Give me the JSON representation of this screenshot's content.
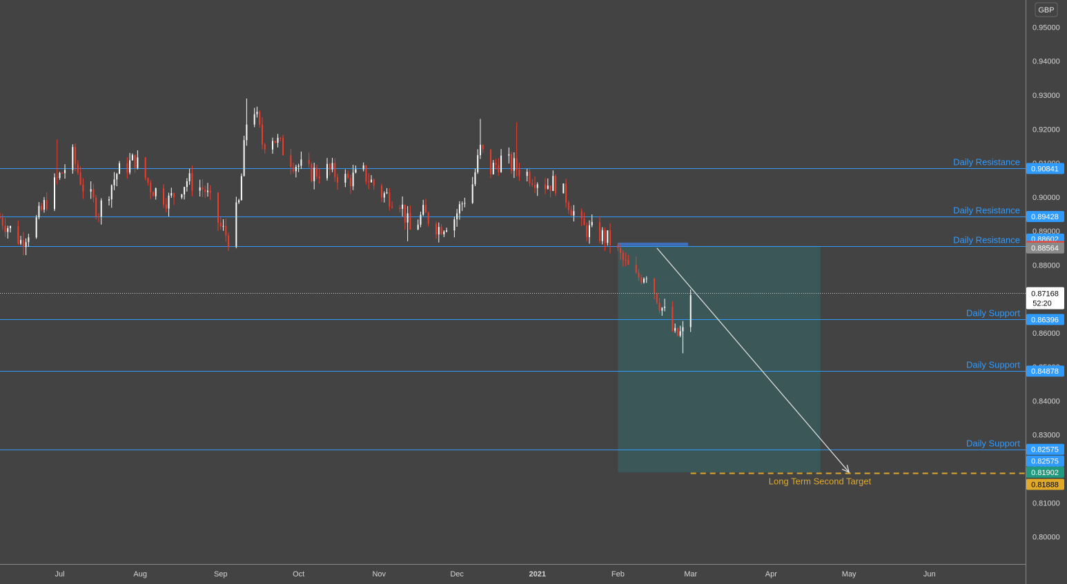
{
  "currency_label": "GBP",
  "colors": {
    "background": "#434343",
    "candle_up": "#ffffff",
    "candle_down": "#f23b2a",
    "level": "#2f9bff",
    "box": "#3b5958",
    "target": "#e0a92a",
    "arrow": "#e6e6e6"
  },
  "chart_data": {
    "type": "candlestick",
    "instrument_currency": "GBP",
    "y_range": [
      0.792,
      0.958
    ],
    "x_range": [
      "2020-06-08",
      "2021-07-08"
    ],
    "y_ticks": [
      "0.95000",
      "0.94000",
      "0.93000",
      "0.92000",
      "0.91000",
      "0.90000",
      "0.89000",
      "0.88000",
      "0.87000",
      "0.86000",
      "0.85000",
      "0.84000",
      "0.83000",
      "0.82000",
      "0.81000",
      "0.80000"
    ],
    "x_ticks": [
      {
        "label": "Jul",
        "date": "2020-07-01"
      },
      {
        "label": "Aug",
        "date": "2020-08-01"
      },
      {
        "label": "Sep",
        "date": "2020-09-01"
      },
      {
        "label": "Oct",
        "date": "2020-10-01"
      },
      {
        "label": "Nov",
        "date": "2020-11-01"
      },
      {
        "label": "Dec",
        "date": "2020-12-01"
      },
      {
        "label": "2021",
        "date": "2021-01-01"
      },
      {
        "label": "Feb",
        "date": "2021-02-01"
      },
      {
        "label": "Mar",
        "date": "2021-03-01"
      },
      {
        "label": "Apr",
        "date": "2021-04-01"
      },
      {
        "label": "May",
        "date": "2021-05-01"
      },
      {
        "label": "Jun",
        "date": "2021-06-01"
      }
    ],
    "price_path": [
      [
        "2020-06-08",
        0.894
      ],
      [
        "2020-06-16",
        0.887
      ],
      [
        "2020-06-22",
        0.893
      ],
      [
        "2020-06-30",
        0.905
      ],
      [
        "2020-07-06",
        0.912
      ],
      [
        "2020-07-10",
        0.903
      ],
      [
        "2020-07-16",
        0.896
      ],
      [
        "2020-07-23",
        0.907
      ],
      [
        "2020-07-30",
        0.911
      ],
      [
        "2020-08-05",
        0.903
      ],
      [
        "2020-08-12",
        0.899
      ],
      [
        "2020-08-19",
        0.905
      ],
      [
        "2020-08-26",
        0.902
      ],
      [
        "2020-09-01",
        0.891
      ],
      [
        "2020-09-04",
        0.888
      ],
      [
        "2020-09-08",
        0.898
      ],
      [
        "2020-09-11",
        0.922
      ],
      [
        "2020-09-14",
        0.926
      ],
      [
        "2020-09-17",
        0.916
      ],
      [
        "2020-09-21",
        0.918
      ],
      [
        "2020-09-28",
        0.911
      ],
      [
        "2020-10-05",
        0.907
      ],
      [
        "2020-10-12",
        0.908
      ],
      [
        "2020-10-20",
        0.905
      ],
      [
        "2020-10-26",
        0.907
      ],
      [
        "2020-11-02",
        0.901
      ],
      [
        "2020-11-09",
        0.899
      ],
      [
        "2020-11-13",
        0.89
      ],
      [
        "2020-11-18",
        0.895
      ],
      [
        "2020-11-24",
        0.891
      ],
      [
        "2020-11-30",
        0.894
      ],
      [
        "2020-12-07",
        0.904
      ],
      [
        "2020-12-10",
        0.914
      ],
      [
        "2020-12-14",
        0.908
      ],
      [
        "2020-12-18",
        0.911
      ],
      [
        "2020-12-23",
        0.909
      ],
      [
        "2021-01-04",
        0.904
      ],
      [
        "2021-01-08",
        0.904
      ],
      [
        "2021-01-12",
        0.9
      ],
      [
        "2021-01-18",
        0.891
      ],
      [
        "2021-01-25",
        0.889
      ],
      [
        "2021-01-29",
        0.887
      ],
      [
        "2021-02-04",
        0.88
      ],
      [
        "2021-02-08",
        0.876
      ],
      [
        "2021-02-12",
        0.878
      ],
      [
        "2021-02-17",
        0.869
      ],
      [
        "2021-02-23",
        0.859
      ],
      [
        "2021-02-26",
        0.86
      ],
      [
        "2021-03-01",
        0.872
      ]
    ],
    "spikes": [
      {
        "date": "2020-06-30",
        "high": 0.917
      },
      {
        "date": "2020-09-11",
        "high": 0.929
      },
      {
        "date": "2020-12-10",
        "high": 0.923
      },
      {
        "date": "2020-12-24",
        "high": 0.922
      },
      {
        "date": "2020-09-04",
        "low": 0.887
      },
      {
        "date": "2020-11-12",
        "low": 0.887
      },
      {
        "date": "2021-02-26",
        "low": 0.854
      }
    ],
    "levels": [
      {
        "label": "Daily Resistance",
        "value": 0.90841,
        "tag": "0.90841"
      },
      {
        "label": "Daily Resistance",
        "value": 0.89428,
        "tag": "0.89428"
      },
      {
        "label": "Daily Resistance",
        "value": 0.88564,
        "tag": "0.88564"
      },
      {
        "label": "Daily Support",
        "value": 0.86396,
        "tag": "0.86396"
      },
      {
        "label": "Daily Support",
        "value": 0.84878,
        "tag": "0.84878"
      },
      {
        "label": "Daily Support",
        "value": 0.82575,
        "tag": "0.82575"
      }
    ],
    "price_tags": [
      {
        "value": 0.90841,
        "text": "0.90841",
        "bg": "#2f9bff",
        "fg": "#ffffff"
      },
      {
        "value": 0.89428,
        "text": "0.89428",
        "bg": "#2f9bff",
        "fg": "#ffffff"
      },
      {
        "value": 0.88602,
        "text": "0.88602",
        "bg": "#2f9bff",
        "fg": "#ffffff"
      },
      {
        "value": 0.88565,
        "text": "0.88565",
        "bg": "#f23b2a",
        "fg": "#ffffff"
      },
      {
        "value": 0.88564,
        "text": "0.88564",
        "bg": "#8a8a8a",
        "fg": "#ffffff"
      },
      {
        "value": 0.86396,
        "text": "0.86396",
        "bg": "#2f9bff",
        "fg": "#ffffff"
      },
      {
        "value": 0.84878,
        "text": "0.84878",
        "bg": "#2f9bff",
        "fg": "#ffffff"
      },
      {
        "value": 0.82575,
        "text": "0.82575",
        "bg": "#2f9bff",
        "fg": "#ffffff"
      },
      {
        "value": 0.82575,
        "text": "0.82575",
        "bg": "#2f9bff",
        "fg": "#ffffff",
        "stack": 1
      },
      {
        "value": 0.81902,
        "text": "0.81902",
        "bg": "#1f9a7e",
        "fg": "#ffffff"
      },
      {
        "value": 0.81888,
        "text": "0.81888",
        "bg": "#e0a92a",
        "fg": "#000000"
      }
    ],
    "current_price": {
      "value": 0.87168,
      "text": "0.87168",
      "countdown": "52:20"
    },
    "short_position": {
      "start_date": "2021-02-01",
      "end_date": "2021-04-20",
      "entry": 0.8856,
      "target": 0.819,
      "entry_band": [
        0.8856,
        0.8866
      ],
      "entry_band_end_date": "2021-02-28"
    },
    "projection_arrow": {
      "from": [
        "2021-02-16",
        0.885
      ],
      "to": [
        "2021-05-01",
        0.819
      ]
    },
    "long_term_target": {
      "label": "Long Term Second Target",
      "value": 0.81888,
      "start_date": "2021-03-01"
    }
  }
}
